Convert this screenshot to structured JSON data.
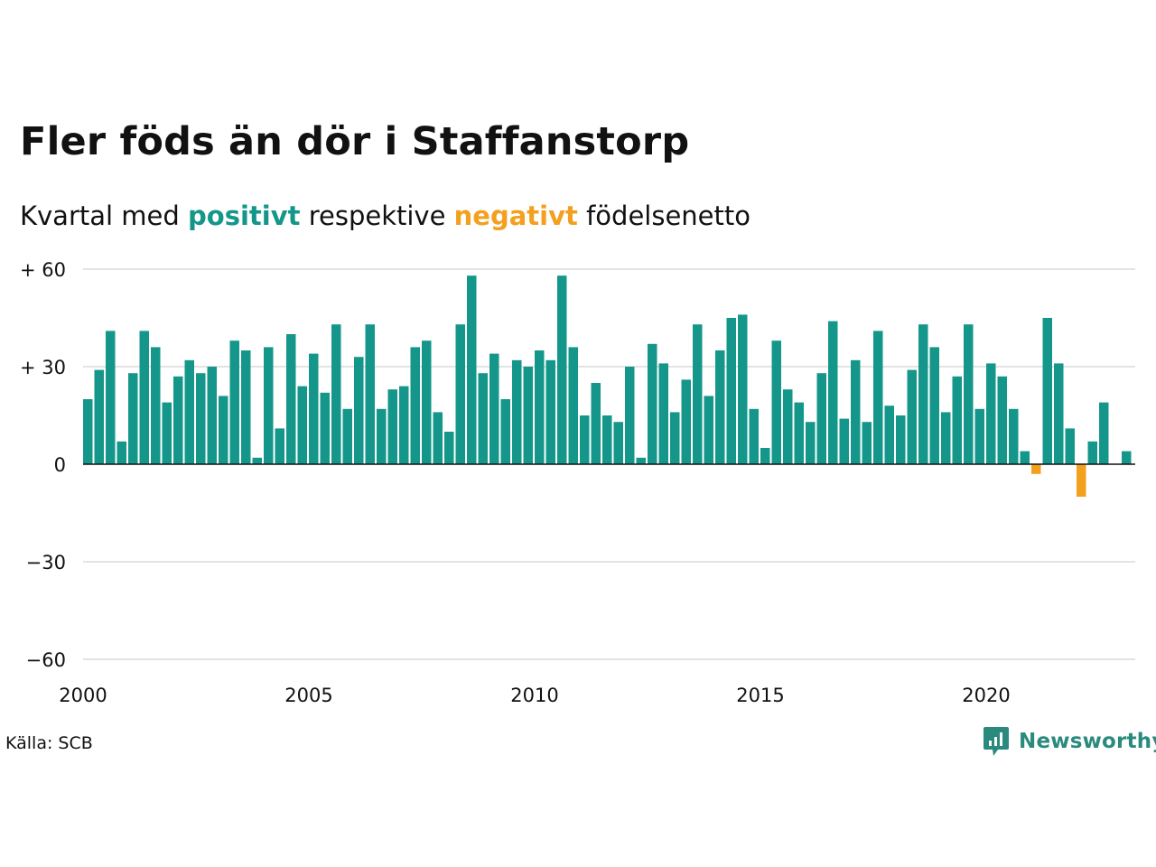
{
  "title": "Fler föds än dör i Staffanstorp",
  "subtitle": {
    "prefix": "Kvartal med",
    "positive_word": "positivt",
    "middle": "respektive",
    "negative_word": "negativt",
    "suffix": "födelsenetto"
  },
  "source": "Källa: SCB",
  "brand": {
    "name": "Newsworthy",
    "icon": "newsworthy-logo-icon"
  },
  "colors": {
    "positive": "#14978a",
    "negative": "#f4a01f",
    "grid": "#e3e3e3",
    "axis": "#111111"
  },
  "chart_data": {
    "type": "bar",
    "frequency": "quarterly",
    "start_period": "2000 Q1",
    "ylim": [
      -60,
      60
    ],
    "yticks": [
      {
        "value": 60,
        "label": "+ 60"
      },
      {
        "value": 30,
        "label": "+ 30"
      },
      {
        "value": 0,
        "label": "0"
      },
      {
        "value": -30,
        "label": "−30"
      },
      {
        "value": -60,
        "label": "−60"
      }
    ],
    "xticks": [
      "2000",
      "2005",
      "2010",
      "2015",
      "2020"
    ],
    "grid": true,
    "values": [
      20,
      29,
      41,
      7,
      28,
      41,
      36,
      19,
      27,
      32,
      28,
      30,
      21,
      38,
      35,
      2,
      36,
      11,
      40,
      24,
      34,
      22,
      43,
      17,
      33,
      43,
      17,
      23,
      24,
      36,
      38,
      16,
      10,
      43,
      58,
      28,
      34,
      20,
      32,
      30,
      35,
      32,
      58,
      36,
      15,
      25,
      15,
      13,
      30,
      2,
      37,
      31,
      16,
      26,
      43,
      21,
      35,
      45,
      46,
      17,
      5,
      38,
      23,
      19,
      13,
      28,
      44,
      14,
      32,
      13,
      41,
      18,
      15,
      29,
      43,
      36,
      16,
      27,
      43,
      17,
      31,
      27,
      17,
      4,
      -3,
      45,
      31,
      11,
      -10,
      7,
      19,
      null,
      4
    ]
  }
}
